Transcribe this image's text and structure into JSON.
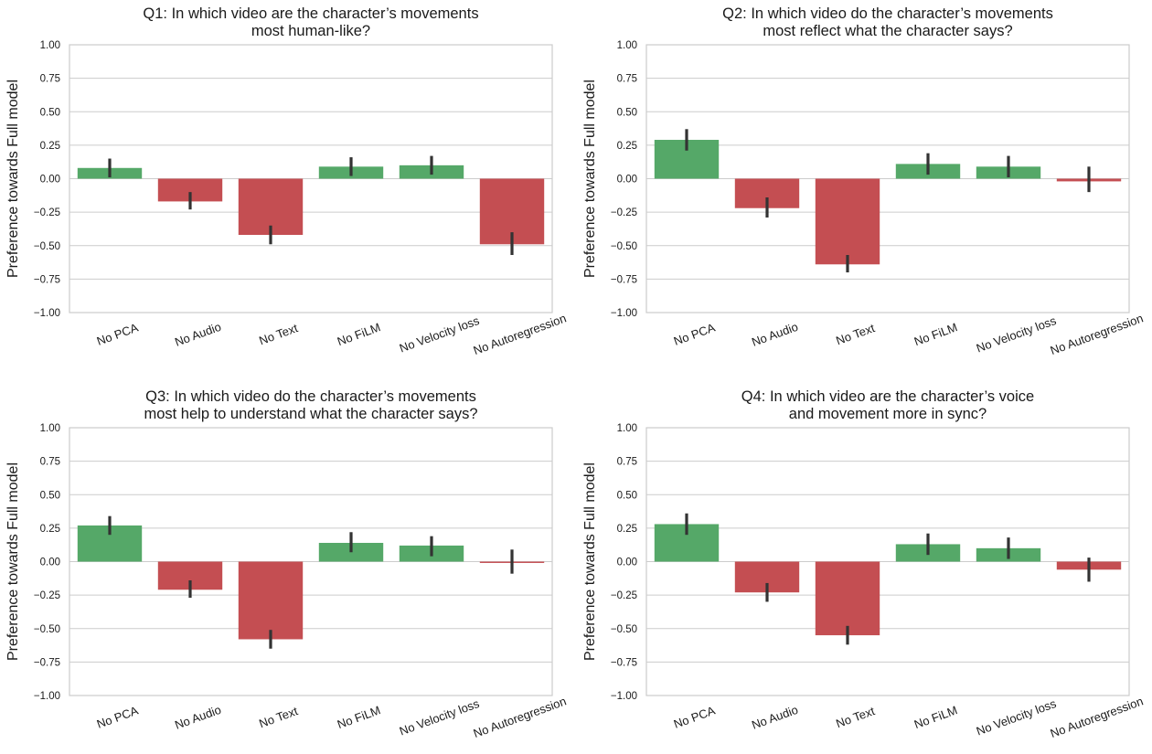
{
  "colors": {
    "positive": "#55a868",
    "negative": "#c44e52",
    "errorbar": "#333333",
    "grid": "#cccccc",
    "frame": "#cccccc"
  },
  "chart_data": [
    {
      "type": "bar",
      "title_lines": [
        "Q1: In which video are the character’s movements",
        "most human-like?"
      ],
      "ylabel": "Preference towards Full model",
      "ylim": [
        -1.0,
        1.0
      ],
      "yticks": [
        "1.00",
        "0.75",
        "0.50",
        "0.25",
        "0.00",
        "−0.25",
        "−0.50",
        "−0.75",
        "−1.00"
      ],
      "grid": "horizontal",
      "categories": [
        "No PCA",
        "No Audio",
        "No Text",
        "No FiLM",
        "No Velocity loss",
        "No Autoregression"
      ],
      "values": [
        0.08,
        -0.17,
        -0.42,
        0.09,
        0.1,
        -0.49
      ],
      "error": [
        [
          0.01,
          0.15
        ],
        [
          -0.23,
          -0.1
        ],
        [
          -0.49,
          -0.35
        ],
        [
          0.02,
          0.16
        ],
        [
          0.03,
          0.17
        ],
        [
          -0.57,
          -0.4
        ]
      ]
    },
    {
      "type": "bar",
      "title_lines": [
        "Q2: In which video do the character’s movements",
        "most reflect what the character says?"
      ],
      "ylabel": "Preference towards Full model",
      "ylim": [
        -1.0,
        1.0
      ],
      "yticks": [
        "1.00",
        "0.75",
        "0.50",
        "0.25",
        "0.00",
        "−0.25",
        "−0.50",
        "−0.75",
        "−1.00"
      ],
      "grid": "horizontal",
      "categories": [
        "No PCA",
        "No Audio",
        "No Text",
        "No FiLM",
        "No Velocity loss",
        "No Autoregression"
      ],
      "values": [
        0.29,
        -0.22,
        -0.64,
        0.11,
        0.09,
        -0.02
      ],
      "error": [
        [
          0.21,
          0.37
        ],
        [
          -0.29,
          -0.14
        ],
        [
          -0.7,
          -0.57
        ],
        [
          0.03,
          0.19
        ],
        [
          0.01,
          0.17
        ],
        [
          -0.1,
          0.09
        ]
      ]
    },
    {
      "type": "bar",
      "title_lines": [
        "Q3: In which video do the character’s movements",
        "most help to understand what the character says?"
      ],
      "ylabel": "Preference towards Full model",
      "ylim": [
        -1.0,
        1.0
      ],
      "yticks": [
        "1.00",
        "0.75",
        "0.50",
        "0.25",
        "0.00",
        "−0.25",
        "−0.50",
        "−0.75",
        "−1.00"
      ],
      "grid": "horizontal",
      "categories": [
        "No PCA",
        "No Audio",
        "No Text",
        "No FiLM",
        "No Velocity loss",
        "No Autoregression"
      ],
      "values": [
        0.27,
        -0.21,
        -0.58,
        0.14,
        0.12,
        -0.01
      ],
      "error": [
        [
          0.2,
          0.34
        ],
        [
          -0.27,
          -0.14
        ],
        [
          -0.65,
          -0.51
        ],
        [
          0.07,
          0.22
        ],
        [
          0.04,
          0.19
        ],
        [
          -0.09,
          0.09
        ]
      ]
    },
    {
      "type": "bar",
      "title_lines": [
        "Q4: In which video are the character’s voice",
        "and movement more in sync?"
      ],
      "ylabel": "Preference towards Full model",
      "ylim": [
        -1.0,
        1.0
      ],
      "yticks": [
        "1.00",
        "0.75",
        "0.50",
        "0.25",
        "0.00",
        "−0.25",
        "−0.50",
        "−0.75",
        "−1.00"
      ],
      "grid": "horizontal",
      "categories": [
        "No PCA",
        "No Audio",
        "No Text",
        "No FiLM",
        "No Velocity loss",
        "No Autoregression"
      ],
      "values": [
        0.28,
        -0.23,
        -0.55,
        0.13,
        0.1,
        -0.06
      ],
      "error": [
        [
          0.2,
          0.36
        ],
        [
          -0.3,
          -0.16
        ],
        [
          -0.62,
          -0.48
        ],
        [
          0.05,
          0.21
        ],
        [
          0.02,
          0.18
        ],
        [
          -0.15,
          0.03
        ]
      ]
    }
  ]
}
